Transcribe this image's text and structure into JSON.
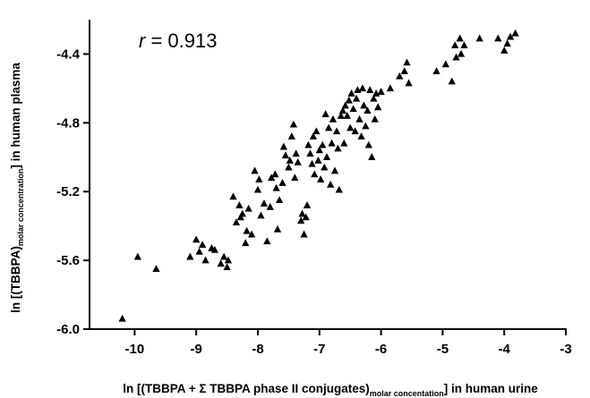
{
  "chart_data": {
    "type": "scatter",
    "title": "",
    "annotation": {
      "symbol": "r",
      "text": " = 0.913"
    },
    "xlabel": {
      "pre": "ln [(TBBPA + Σ TBBPA phase II conjugates)",
      "sub": "molar concentation",
      "post": "] in human urine"
    },
    "ylabel": {
      "pre": "ln [(TBBPA)",
      "sub": "molar concentration",
      "post": "] in human plasma"
    },
    "xlim": [
      -10.5,
      -3
    ],
    "ylim": [
      -6.0,
      -4.2
    ],
    "xticks": [
      -10,
      -9,
      -8,
      -7,
      -6,
      -5,
      -4,
      -3
    ],
    "yticks": [
      -6.0,
      -5.6,
      -5.2,
      -4.8,
      -4.4
    ],
    "xtick_labels": [
      "-10",
      "-9",
      "-8",
      "-7",
      "-6",
      "-5",
      "-4",
      "-3"
    ],
    "ytick_labels": [
      "-6.0",
      "-5.6",
      "-5.2",
      "-4.8",
      "-4.4"
    ],
    "marker": "triangle",
    "color": "#000000",
    "points": [
      [
        -10.2,
        -5.94
      ],
      [
        -9.95,
        -5.58
      ],
      [
        -9.65,
        -5.65
      ],
      [
        -9.1,
        -5.58
      ],
      [
        -9.0,
        -5.48
      ],
      [
        -8.95,
        -5.55
      ],
      [
        -8.9,
        -5.51
      ],
      [
        -8.85,
        -5.6
      ],
      [
        -8.75,
        -5.53
      ],
      [
        -8.7,
        -5.54
      ],
      [
        -8.6,
        -5.62
      ],
      [
        -8.55,
        -5.58
      ],
      [
        -8.5,
        -5.64
      ],
      [
        -8.48,
        -5.6
      ],
      [
        -8.4,
        -5.23
      ],
      [
        -8.35,
        -5.38
      ],
      [
        -8.3,
        -5.28
      ],
      [
        -8.28,
        -5.35
      ],
      [
        -8.25,
        -5.33
      ],
      [
        -8.2,
        -5.5
      ],
      [
        -8.18,
        -5.43
      ],
      [
        -8.15,
        -5.3
      ],
      [
        -8.1,
        -5.45
      ],
      [
        -8.05,
        -5.08
      ],
      [
        -8.0,
        -5.19
      ],
      [
        -7.98,
        -5.13
      ],
      [
        -7.95,
        -5.34
      ],
      [
        -7.9,
        -5.27
      ],
      [
        -7.85,
        -5.49
      ],
      [
        -7.8,
        -5.29
      ],
      [
        -7.78,
        -5.12
      ],
      [
        -7.72,
        -5.1
      ],
      [
        -7.7,
        -5.18
      ],
      [
        -7.68,
        -5.42
      ],
      [
        -7.65,
        -5.25
      ],
      [
        -7.6,
        -5.15
      ],
      [
        -7.58,
        -4.94
      ],
      [
        -7.55,
        -4.99
      ],
      [
        -7.5,
        -5.06
      ],
      [
        -7.48,
        -5.02
      ],
      [
        -7.45,
        -4.88
      ],
      [
        -7.42,
        -4.81
      ],
      [
        -7.4,
        -5.12
      ],
      [
        -7.38,
        -4.98
      ],
      [
        -7.35,
        -5.03
      ],
      [
        -7.3,
        -5.37
      ],
      [
        -7.28,
        -5.33
      ],
      [
        -7.25,
        -5.45
      ],
      [
        -7.22,
        -5.35
      ],
      [
        -7.2,
        -5.28
      ],
      [
        -7.18,
        -4.93
      ],
      [
        -7.15,
        -4.98
      ],
      [
        -7.12,
        -5.04
      ],
      [
        -7.1,
        -4.88
      ],
      [
        -7.08,
        -5.1
      ],
      [
        -7.05,
        -4.85
      ],
      [
        -7.02,
        -5.02
      ],
      [
        -7.0,
        -4.96
      ],
      [
        -6.98,
        -5.13
      ],
      [
        -6.95,
        -4.93
      ],
      [
        -6.92,
        -5.06
      ],
      [
        -6.9,
        -4.75
      ],
      [
        -6.88,
        -5.0
      ],
      [
        -6.85,
        -4.83
      ],
      [
        -6.82,
        -5.16
      ],
      [
        -6.8,
        -4.92
      ],
      [
        -6.78,
        -4.78
      ],
      [
        -6.75,
        -5.08
      ],
      [
        -6.72,
        -4.85
      ],
      [
        -6.7,
        -4.95
      ],
      [
        -6.68,
        -5.19
      ],
      [
        -6.65,
        -4.76
      ],
      [
        -6.62,
        -4.73
      ],
      [
        -6.6,
        -4.92
      ],
      [
        -6.58,
        -4.7
      ],
      [
        -6.55,
        -4.76
      ],
      [
        -6.52,
        -4.67
      ],
      [
        -6.5,
        -4.83
      ],
      [
        -6.48,
        -4.63
      ],
      [
        -6.45,
        -4.72
      ],
      [
        -6.42,
        -4.85
      ],
      [
        -6.4,
        -4.66
      ],
      [
        -6.38,
        -4.61
      ],
      [
        -6.35,
        -4.78
      ],
      [
        -6.32,
        -4.88
      ],
      [
        -6.3,
        -4.6
      ],
      [
        -6.28,
        -4.7
      ],
      [
        -6.25,
        -4.82
      ],
      [
        -6.22,
        -4.73
      ],
      [
        -6.2,
        -4.93
      ],
      [
        -6.18,
        -4.61
      ],
      [
        -6.15,
        -5.0
      ],
      [
        -6.12,
        -4.66
      ],
      [
        -6.1,
        -4.78
      ],
      [
        -6.08,
        -4.63
      ],
      [
        -6.05,
        -4.71
      ],
      [
        -6.0,
        -4.62
      ],
      [
        -5.85,
        -4.6
      ],
      [
        -5.7,
        -4.53
      ],
      [
        -5.62,
        -4.5
      ],
      [
        -5.58,
        -4.45
      ],
      [
        -5.55,
        -4.57
      ],
      [
        -5.1,
        -4.5
      ],
      [
        -4.95,
        -4.46
      ],
      [
        -4.85,
        -4.56
      ],
      [
        -4.8,
        -4.35
      ],
      [
        -4.78,
        -4.42
      ],
      [
        -4.72,
        -4.31
      ],
      [
        -4.7,
        -4.4
      ],
      [
        -4.65,
        -4.35
      ],
      [
        -4.4,
        -4.31
      ],
      [
        -4.1,
        -4.31
      ],
      [
        -4.0,
        -4.38
      ],
      [
        -3.95,
        -4.34
      ],
      [
        -3.9,
        -4.3
      ],
      [
        -3.82,
        -4.28
      ]
    ]
  }
}
